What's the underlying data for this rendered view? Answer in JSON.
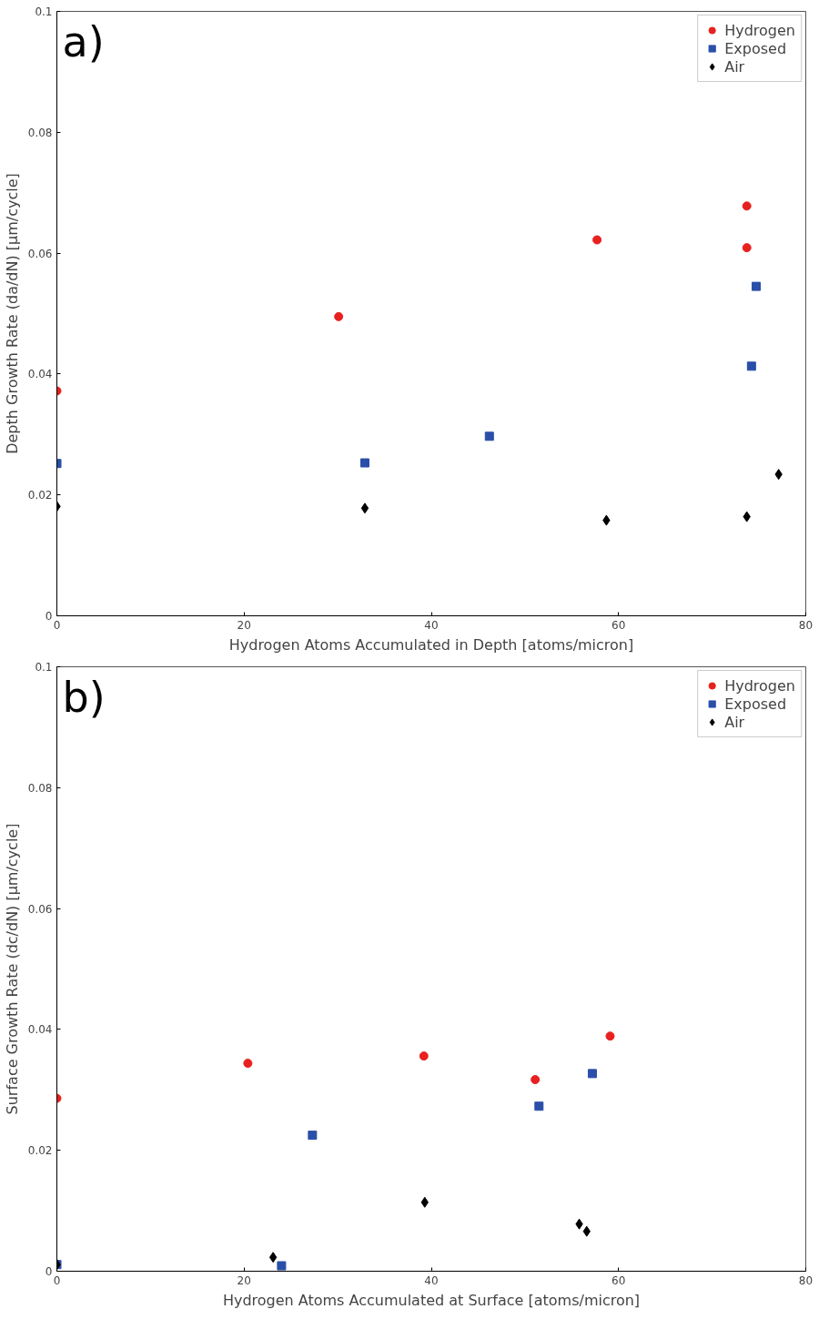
{
  "chart_data": [
    {
      "type": "scatter",
      "xlabel": "Hydrogen Atoms Accumulated in Depth [atoms/micron]",
      "ylabel": "Depth Growth Rate (da/dN) [µm/cycle]",
      "annotations": [
        "a)"
      ],
      "xlim": [
        0,
        80
      ],
      "ylim": [
        0,
        0.1
      ],
      "xticks": [
        0,
        20,
        40,
        60,
        80
      ],
      "yticks": [
        0,
        0.02,
        0.04,
        0.06,
        0.08,
        0.1
      ],
      "grid": false,
      "legend": "top right",
      "series": [
        {
          "name": "Hydrogen",
          "color": "#e8201f",
          "marker": "circle",
          "x": [
            0,
            30.1,
            57.7,
            73.7,
            73.7
          ],
          "values": [
            0.0372,
            0.0495,
            0.0622,
            0.0678,
            0.0609
          ]
        },
        {
          "name": "Exposed",
          "color": "#2a4fa8",
          "marker": "square",
          "x": [
            0,
            32.9,
            46.2,
            74.2,
            74.7
          ],
          "values": [
            0.0252,
            0.0253,
            0.0297,
            0.0413,
            0.0545
          ]
        },
        {
          "name": "Air",
          "color": "#000000",
          "marker": "diamond",
          "x": [
            0,
            32.9,
            58.7,
            73.7,
            77.1
          ],
          "values": [
            0.0181,
            0.0178,
            0.0158,
            0.0164,
            0.0234
          ]
        }
      ]
    },
    {
      "type": "scatter",
      "xlabel": "Hydrogen Atoms Accumulated at Surface [atoms/micron]",
      "ylabel": "Surface Growth Rate (dc/dN) [µm/cycle]",
      "annotations": [
        "b)"
      ],
      "xlim": [
        0,
        80
      ],
      "ylim": [
        0,
        0.1
      ],
      "xticks": [
        0,
        20,
        40,
        60,
        80
      ],
      "yticks": [
        0,
        0.02,
        0.04,
        0.06,
        0.08,
        0.1
      ],
      "grid": false,
      "legend": "top right",
      "series": [
        {
          "name": "Hydrogen",
          "color": "#e8201f",
          "marker": "circle",
          "x": [
            0,
            20.4,
            39.2,
            51.1,
            59.1
          ],
          "values": [
            0.0286,
            0.0344,
            0.0356,
            0.0317,
            0.0389
          ]
        },
        {
          "name": "Exposed",
          "color": "#2a4fa8",
          "marker": "square",
          "x": [
            0,
            24.0,
            27.3,
            51.5,
            57.2
          ],
          "values": [
            0.0011,
            0.0009,
            0.0225,
            0.0273,
            0.0327
          ]
        },
        {
          "name": "Air",
          "color": "#000000",
          "marker": "diamond",
          "x": [
            0,
            23.1,
            39.3,
            55.8,
            56.6
          ],
          "values": [
            0.0011,
            0.0023,
            0.0114,
            0.0078,
            0.0066
          ]
        }
      ]
    }
  ]
}
